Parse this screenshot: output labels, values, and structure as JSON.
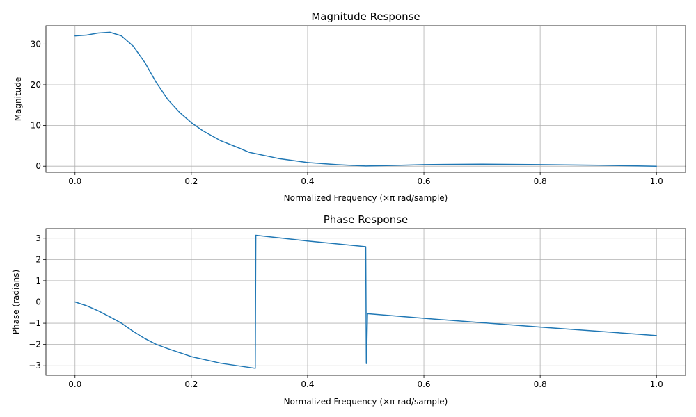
{
  "chart_data": [
    {
      "type": "line",
      "title": "Magnitude Response",
      "xlabel": "Normalized Frequency (×π rad/sample)",
      "ylabel": "Magnitude",
      "xlim": [
        -0.05,
        1.05
      ],
      "ylim": [
        -1.5,
        34.5
      ],
      "xticks": [
        0.0,
        0.2,
        0.4,
        0.6,
        0.8,
        1.0
      ],
      "xtick_labels": [
        "0.0",
        "0.2",
        "0.4",
        "0.6",
        "0.8",
        "1.0"
      ],
      "yticks": [
        0,
        10,
        20,
        30
      ],
      "ytick_labels": [
        "0",
        "10",
        "20",
        "30"
      ],
      "grid": true,
      "color": "#1f77b4",
      "x": [
        0.0,
        0.02,
        0.04,
        0.06,
        0.08,
        0.1,
        0.12,
        0.14,
        0.16,
        0.18,
        0.2,
        0.22,
        0.25,
        0.28,
        0.3,
        0.35,
        0.4,
        0.45,
        0.5,
        0.55,
        0.6,
        0.7,
        0.8,
        0.9,
        1.0
      ],
      "y": [
        32.0,
        32.2,
        32.7,
        32.9,
        32.0,
        29.5,
        25.5,
        20.5,
        16.3,
        13.2,
        10.7,
        8.7,
        6.3,
        4.6,
        3.4,
        1.9,
        0.9,
        0.4,
        0.05,
        0.2,
        0.4,
        0.5,
        0.4,
        0.25,
        0.0
      ]
    },
    {
      "type": "line",
      "title": "Phase Response",
      "xlabel": "Normalized Frequency (×π rad/sample)",
      "ylabel": "Phase (radians)",
      "xlim": [
        -0.05,
        1.05
      ],
      "ylim": [
        -3.45,
        3.45
      ],
      "xticks": [
        0.0,
        0.2,
        0.4,
        0.6,
        0.8,
        1.0
      ],
      "xtick_labels": [
        "0.0",
        "0.2",
        "0.4",
        "0.6",
        "0.8",
        "1.0"
      ],
      "yticks": [
        -3,
        -2,
        -1,
        0,
        1,
        2,
        3
      ],
      "ytick_labels": [
        "−3",
        "−2",
        "−1",
        "0",
        "1",
        "2",
        "3"
      ],
      "grid": true,
      "color": "#1f77b4",
      "x": [
        0.0,
        0.02,
        0.04,
        0.06,
        0.08,
        0.1,
        0.12,
        0.14,
        0.16,
        0.2,
        0.25,
        0.3,
        0.31,
        0.311,
        0.4,
        0.5,
        0.501,
        0.502,
        0.503,
        0.6,
        0.8,
        1.0
      ],
      "y": [
        0.0,
        -0.18,
        -0.42,
        -0.7,
        -1.0,
        -1.38,
        -1.72,
        -2.0,
        -2.2,
        -2.57,
        -2.88,
        -3.08,
        -3.12,
        3.14,
        2.87,
        2.6,
        -2.9,
        -2.0,
        -0.55,
        -0.77,
        -1.18,
        -1.58
      ]
    }
  ]
}
